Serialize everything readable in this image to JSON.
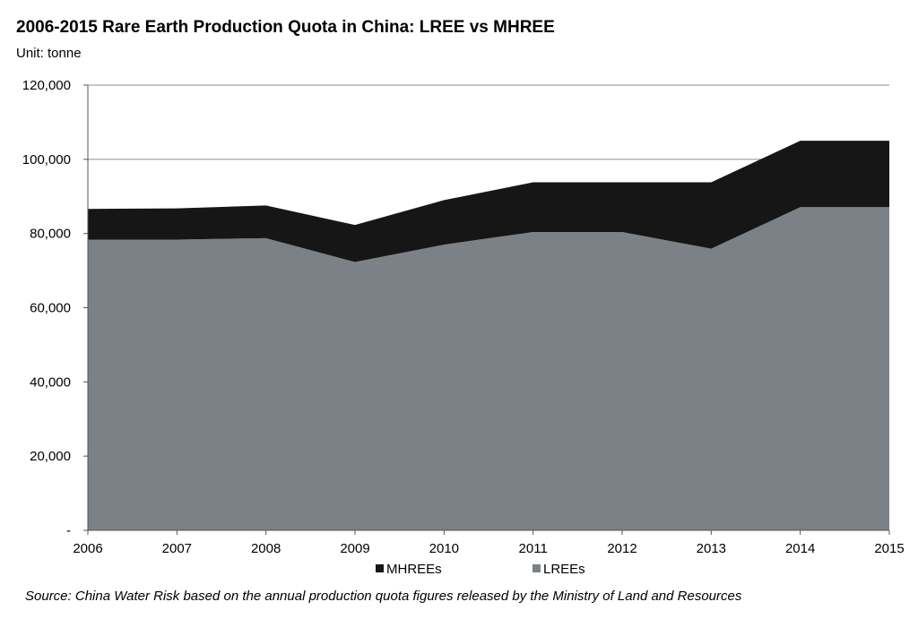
{
  "chart_data": {
    "type": "area",
    "stacked": true,
    "title": "2006-2015 Rare Earth Production Quota in China: LREE vs MHREE",
    "subtitle": "Unit: tonne",
    "xlabel": "",
    "ylabel": "",
    "categories": [
      "2006",
      "2007",
      "2008",
      "2009",
      "2010",
      "2011",
      "2012",
      "2013",
      "2014",
      "2015"
    ],
    "ylim": [
      0,
      120000
    ],
    "yticks": [
      0,
      20000,
      40000,
      60000,
      80000,
      100000,
      120000
    ],
    "ytick_labels": [
      "-",
      "20,000",
      "40,000",
      "60,000",
      "80,000",
      "100,000",
      "120,000"
    ],
    "grid": "horizontal",
    "legend_position": "bottom",
    "series": [
      {
        "name": "LREEs",
        "color": "#7c8187",
        "values": [
          78350,
          78350,
          78750,
          72300,
          77000,
          80400,
          80400,
          75900,
          87100,
          87100
        ]
      },
      {
        "name": "MHREEs",
        "color": "#161616",
        "values": [
          8270,
          8430,
          8800,
          10000,
          12000,
          13400,
          13400,
          17900,
          17900,
          17900
        ]
      }
    ],
    "legend_order": [
      "MHREEs",
      "LREEs"
    ],
    "source": "Source: China Water Risk based on the annual production quota figures released by the Ministry of Land and Resources"
  }
}
